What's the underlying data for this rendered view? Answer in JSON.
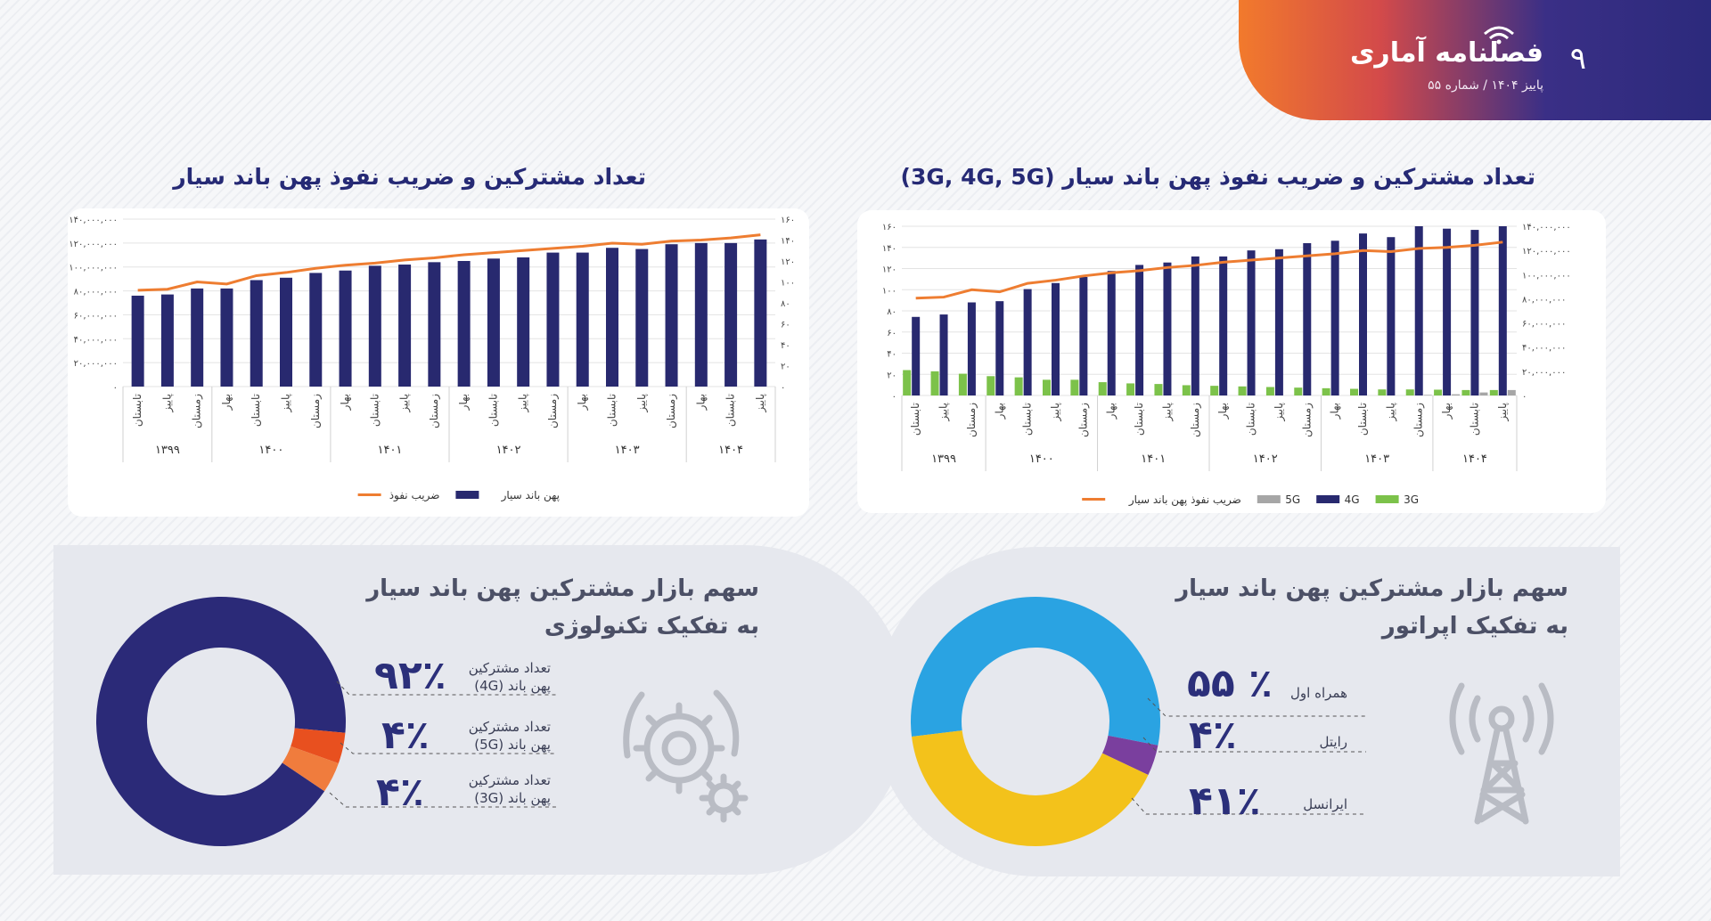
{
  "header": {
    "brand": "فصلنامه آماری",
    "issue": "پاییز ۱۴۰۴ / شماره ۵۵",
    "page_number": "۹"
  },
  "chart_data": [
    {
      "type": "bar",
      "title": "تعداد مشترکین و ضریب نفوذ پهن باند سیار (3G, 4G, 5G)",
      "categories": [
        "تابستان",
        "پاییز",
        "زمستان",
        "بهار",
        "تابستان",
        "پاییز",
        "زمستان",
        "بهار",
        "تابستان",
        "پاییز",
        "زمستان",
        "بهار",
        "تابستان",
        "پاییز",
        "زمستان",
        "بهار",
        "تابستان",
        "پاییز",
        "زمستان",
        "بهار",
        "تابستان",
        "پاییز"
      ],
      "years": [
        {
          "label": "۱۳۹۹",
          "count": 3
        },
        {
          "label": "۱۴۰۰",
          "count": 4
        },
        {
          "label": "۱۴۰۱",
          "count": 4
        },
        {
          "label": "۱۴۰۲",
          "count": 4
        },
        {
          "label": "۱۴۰۳",
          "count": 4
        },
        {
          "label": "۱۴۰۴",
          "count": 3
        }
      ],
      "series": [
        {
          "name": "3G",
          "color": "#7cc24a",
          "values": [
            21000000,
            20000000,
            18000000,
            16000000,
            15000000,
            13000000,
            13000000,
            11000000,
            10000000,
            9500000,
            8500000,
            8000000,
            7500000,
            7000000,
            6500000,
            6000000,
            5500000,
            5000000,
            5000000,
            4800000,
            4500000,
            4500000
          ]
        },
        {
          "name": "4G",
          "color": "#28296f",
          "values": [
            65000000,
            67000000,
            77000000,
            78000000,
            88000000,
            93000000,
            98000000,
            103000000,
            108000000,
            110000000,
            115000000,
            115000000,
            120000000,
            121000000,
            126000000,
            128000000,
            134000000,
            131000000,
            140000000,
            138000000,
            137000000,
            140000000
          ]
        },
        {
          "name": "5G",
          "color": "#a6a6a6",
          "values": [
            0,
            0,
            0,
            0,
            0,
            0,
            0,
            0,
            0,
            0,
            0,
            0,
            0,
            0,
            0,
            0,
            0,
            0,
            500000,
            1000000,
            2500000,
            4500000
          ]
        },
        {
          "name": "ضریب نفوذ پهن باند سیار",
          "color": "#ee7d31",
          "values": [
            92,
            93,
            100,
            98,
            106,
            109,
            113,
            116,
            118,
            121,
            123,
            126,
            128,
            130,
            132,
            134,
            137,
            136,
            139,
            140,
            142,
            145
          ]
        }
      ],
      "left_ticks": [
        "۰",
        "۲۰",
        "۴۰",
        "۶۰",
        "۸۰",
        "۱۰۰",
        "۱۲۰",
        "۱۴۰",
        "۱۶۰"
      ],
      "right_ticks": [
        "۰",
        "۲۰,۰۰۰,۰۰۰",
        "۴۰,۰۰۰,۰۰۰",
        "۶۰,۰۰۰,۰۰۰",
        "۸۰,۰۰۰,۰۰۰",
        "۱۰۰,۰۰۰,۰۰۰",
        "۱۲۰,۰۰۰,۰۰۰",
        "۱۴۰,۰۰۰,۰۰۰"
      ],
      "ylim_bars": [
        0,
        140000000
      ],
      "ylim_line": [
        0,
        160
      ],
      "legend_position": "bottom"
    },
    {
      "type": "bar",
      "title": "تعداد مشترکین و ضریب نفوذ پهن باند سیار",
      "categories": [
        "تابستان",
        "پاییز",
        "زمستان",
        "بهار",
        "تابستان",
        "پاییز",
        "زمستان",
        "بهار",
        "تابستان",
        "پاییز",
        "زمستان",
        "بهار",
        "تابستان",
        "پاییز",
        "زمستان",
        "بهار",
        "تابستان",
        "پاییز",
        "زمستان",
        "بهار",
        "تابستان",
        "پاییز"
      ],
      "years": [
        {
          "label": "۱۳۹۹",
          "count": 3
        },
        {
          "label": "۱۴۰۰",
          "count": 4
        },
        {
          "label": "۱۴۰۱",
          "count": 4
        },
        {
          "label": "۱۴۰۲",
          "count": 4
        },
        {
          "label": "۱۴۰۳",
          "count": 4
        },
        {
          "label": "۱۴۰۴",
          "count": 3
        }
      ],
      "series": [
        {
          "name": "پهن باند سیار",
          "color": "#28296f",
          "values": [
            76000000,
            77000000,
            82000000,
            82000000,
            89000000,
            91000000,
            95000000,
            97000000,
            101000000,
            102000000,
            104000000,
            105000000,
            107000000,
            108000000,
            112000000,
            112000000,
            116000000,
            115000000,
            119000000,
            120000000,
            120000000,
            123000000
          ]
        },
        {
          "name": "ضریب نفوذ",
          "color": "#ee7d31",
          "values": [
            92,
            93,
            100,
            98,
            106,
            109,
            113,
            116,
            118,
            121,
            123,
            126,
            128,
            130,
            132,
            134,
            137,
            136,
            139,
            140,
            142,
            145
          ]
        }
      ],
      "left_ticks": [
        "۰",
        "۲۰,۰۰۰,۰۰۰",
        "۴۰,۰۰۰,۰۰۰",
        "۶۰,۰۰۰,۰۰۰",
        "۸۰,۰۰۰,۰۰۰",
        "۱۰۰,۰۰۰,۰۰۰",
        "۱۲۰,۰۰۰,۰۰۰",
        "۱۴۰,۰۰۰,۰۰۰"
      ],
      "right_ticks": [
        "۰",
        "۲۰",
        "۴۰",
        "۶۰",
        "۸۰",
        "۱۰۰",
        "۱۲۰",
        "۱۴۰",
        "۱۶۰"
      ],
      "ylim_bars": [
        0,
        140000000
      ],
      "ylim_line": [
        0,
        160
      ],
      "legend_position": "bottom"
    },
    {
      "type": "pie",
      "title": "سهم بازار مشترکین پهن باند سیار به تفکیک اپراتور",
      "slices": [
        {
          "label": "همراه اول",
          "value": 55,
          "text": "۵۵ ٪",
          "color": "#2aa3e2"
        },
        {
          "label": "رایتل",
          "value": 4,
          "text": "۴٪",
          "color": "#7a3f9e"
        },
        {
          "label": "ایرانسل",
          "value": 41,
          "text": "۴۱٪",
          "color": "#f3c21b"
        }
      ]
    },
    {
      "type": "pie",
      "title": "سهم بازار مشترکین پهن باند سیار به تفکیک تکنولوژی",
      "slices": [
        {
          "label": "تعداد مشترکین پهن باند (4G)",
          "value": 92,
          "text": "۹۲٪",
          "color": "#2b2a78"
        },
        {
          "label": "تعداد مشترکین پهن باند (5G)",
          "value": 4,
          "text": "۴٪",
          "color": "#e8501f"
        },
        {
          "label": "تعداد مشترکین پهن باند (3G)",
          "value": 4,
          "text": "۴٪",
          "color": "#f07c3d"
        }
      ]
    }
  ],
  "share_operator": {
    "title_line1": "سهم بازار مشترکین پهن باند سیار",
    "title_line2": "به تفکیک اپراتور"
  },
  "share_tech": {
    "title_line1": "سهم بازار مشترکین پهن باند سیار",
    "title_line2": "به تفکیک تکنولوژی",
    "labels": [
      {
        "l1": "تعداد مشترکین",
        "l2": "پهن باند (4G)"
      },
      {
        "l1": "تعداد مشترکین",
        "l2": "پهن باند (5G)"
      },
      {
        "l1": "تعداد مشترکین",
        "l2": "پهن باند (3G)"
      }
    ]
  },
  "icons": [
    "wifi-icon",
    "antenna-tower-icon",
    "gears-icon"
  ]
}
